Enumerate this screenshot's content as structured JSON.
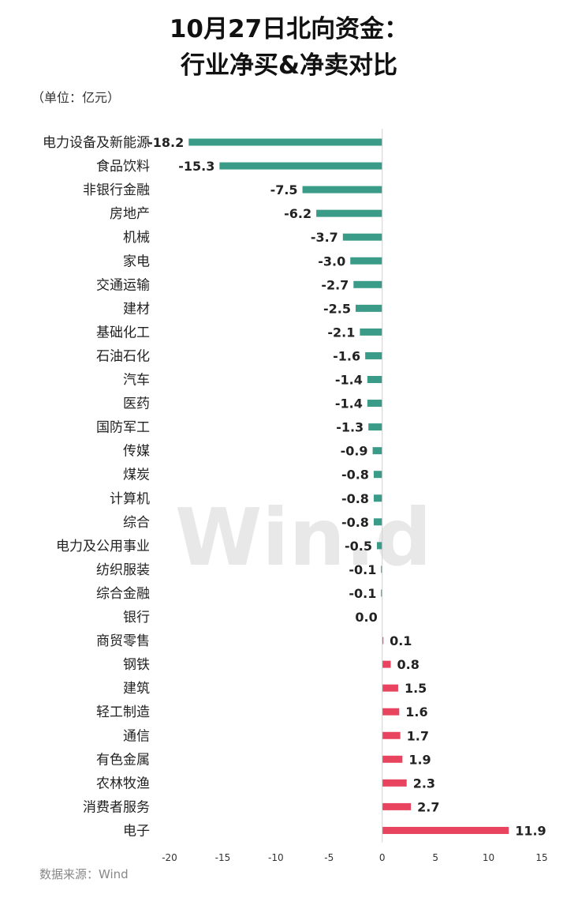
{
  "title_lines": [
    "10月27日北向资金：",
    "行业净买&净卖对比"
  ],
  "unit": "（单位：亿元）",
  "source": "数据来源：Wind",
  "watermark": "Win.d",
  "colors": {
    "negative": "#3a9c88",
    "positive": "#e8445f"
  },
  "chart_data": {
    "type": "bar",
    "orientation": "horizontal",
    "categories": [
      "电力设备及新能源",
      "食品饮料",
      "非银行金融",
      "房地产",
      "机械",
      "家电",
      "交通运输",
      "建材",
      "基础化工",
      "石油石化",
      "汽车",
      "医药",
      "国防军工",
      "传媒",
      "煤炭",
      "计算机",
      "综合",
      "电力及公用事业",
      "纺织服装",
      "综合金融",
      "银行",
      "商贸零售",
      "钢铁",
      "建筑",
      "轻工制造",
      "通信",
      "有色金属",
      "农林牧渔",
      "消费者服务",
      "电子"
    ],
    "values": [
      -18.2,
      -15.3,
      -7.5,
      -6.2,
      -3.7,
      -3.0,
      -2.7,
      -2.5,
      -2.1,
      -1.6,
      -1.4,
      -1.4,
      -1.3,
      -0.9,
      -0.8,
      -0.8,
      -0.8,
      -0.5,
      -0.1,
      -0.1,
      0.0,
      0.1,
      0.8,
      1.5,
      1.6,
      1.7,
      1.9,
      2.3,
      2.7,
      11.9
    ],
    "value_labels": [
      "-18.2",
      "-15.3",
      "-7.5",
      "-6.2",
      "-3.7",
      "-3.0",
      "-2.7",
      "-2.5",
      "-2.1",
      "-1.6",
      "-1.4",
      "-1.4",
      "-1.3",
      "-0.9",
      "-0.8",
      "-0.8",
      "-0.8",
      "-0.5",
      "-0.1",
      "-0.1",
      "0.0",
      "0.1",
      "0.8",
      "1.5",
      "1.6",
      "1.7",
      "1.9",
      "2.3",
      "2.7",
      "11.9"
    ],
    "xlim": [
      -20,
      15
    ],
    "xticks": [
      -20,
      -15,
      -10,
      -5,
      0,
      5,
      10,
      15
    ],
    "xtick_labels": [
      "-20",
      "-15",
      "-10",
      "-5",
      "0",
      "5",
      "10",
      "15"
    ],
    "grid": false,
    "legend": "none"
  }
}
